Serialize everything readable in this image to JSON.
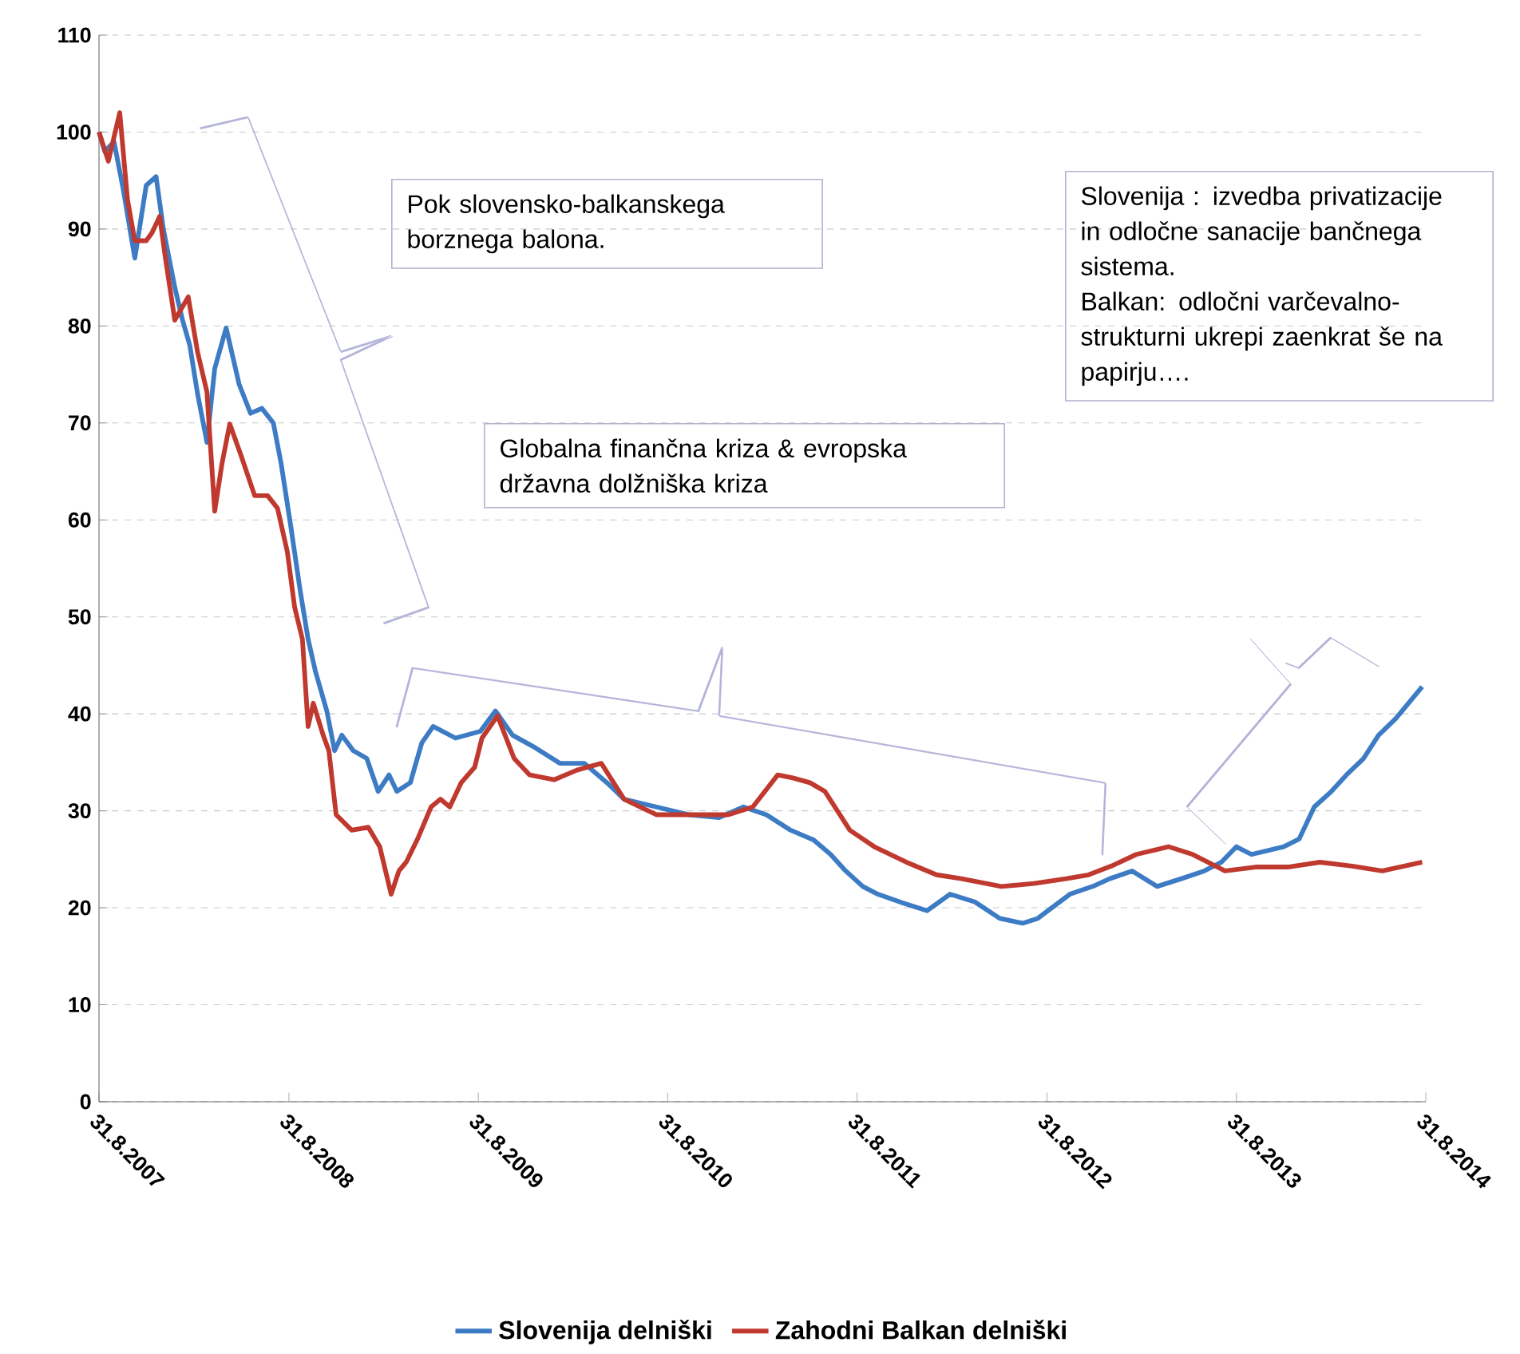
{
  "chart_data": {
    "type": "line",
    "xlim": [
      "2007-08-31",
      "2014-08-31"
    ],
    "xticks": [
      {
        "value": "2007-08-31",
        "label": "31.8.2007"
      },
      {
        "value": "2008-08-31",
        "label": "31.8.2008"
      },
      {
        "value": "2009-08-31",
        "label": "31.8.2009"
      },
      {
        "value": "2010-08-31",
        "label": "31.8.2010"
      },
      {
        "value": "2011-08-31",
        "label": "31.8.2011"
      },
      {
        "value": "2012-08-31",
        "label": "31.8.2012"
      },
      {
        "value": "2013-08-31",
        "label": "31.8.2013"
      },
      {
        "value": "2014-08-31",
        "label": "31.8.2014"
      }
    ],
    "ylim": [
      0,
      110
    ],
    "yticks": [
      0,
      10,
      20,
      30,
      40,
      50,
      60,
      70,
      80,
      90,
      100,
      110
    ],
    "grid": "y",
    "legend": "bottom",
    "annotations": [
      "Pok slovensko-balkanskega borznega balona.",
      "Globalna finančna kriza & evropska državna dolžniška kriza",
      "Slovenija : izvedba privatizacije in odločne sanacije bančnega sistema.",
      "Balkan:  odločni varčevalno-strukturni ukrepi  zaenkrat še na papirju…."
    ],
    "series": [
      {
        "name": "Slovenija delniški",
        "color": "#3d7cc4",
        "x": [
          "2007-08-31",
          "2007-09-11",
          "2007-09-29",
          "2007-10-17",
          "2007-11-08",
          "2007-11-30",
          "2007-12-19",
          "2008-01-02",
          "2008-01-24",
          "2008-02-08",
          "2008-02-22",
          "2008-03-08",
          "2008-03-26",
          "2008-04-10",
          "2008-05-02",
          "2008-05-27",
          "2008-06-18",
          "2008-07-10",
          "2008-08-01",
          "2008-08-16",
          "2008-09-04",
          "2008-09-22",
          "2008-10-07",
          "2008-10-21",
          "2008-11-12",
          "2008-11-27",
          "2008-12-11",
          "2009-01-02",
          "2009-01-28",
          "2009-02-19",
          "2009-03-12",
          "2009-03-27",
          "2009-04-22",
          "2009-05-14",
          "2009-06-05",
          "2009-07-18",
          "2009-09-04",
          "2009-10-03",
          "2009-11-05",
          "2009-12-19",
          "2010-02-04",
          "2010-03-23",
          "2010-05-06",
          "2010-06-08",
          "2010-08-09",
          "2010-10-10",
          "2010-12-08",
          "2011-01-24",
          "2011-03-09",
          "2011-04-25",
          "2011-06-08",
          "2011-07-11",
          "2011-08-09",
          "2011-09-11",
          "2011-10-10",
          "2011-11-27",
          "2012-01-13",
          "2012-02-26",
          "2012-04-14",
          "2012-06-01",
          "2012-07-15",
          "2012-08-13",
          "2012-10-14",
          "2012-11-27",
          "2012-12-30",
          "2013-02-11",
          "2013-03-31",
          "2013-05-17",
          "2013-06-30",
          "2013-08-02",
          "2013-08-31",
          "2013-09-29",
          "2013-11-30",
          "2013-12-30",
          "2014-01-28",
          "2014-03-02",
          "2014-03-31",
          "2014-05-03",
          "2014-06-01",
          "2014-07-04",
          "2014-08-24"
        ],
        "values": [
          100,
          98,
          99,
          94,
          87,
          94.5,
          95.4,
          90,
          84,
          80.6,
          78,
          73,
          68,
          75.6,
          79.8,
          74,
          71,
          71.5,
          70,
          65.8,
          59.2,
          52.6,
          47.7,
          44.4,
          40.3,
          36.2,
          37.8,
          36.2,
          35.4,
          32,
          33.7,
          32,
          32.9,
          37,
          38.7,
          37.5,
          38.2,
          40.3,
          37.8,
          36.5,
          34.9,
          34.9,
          32.9,
          31.2,
          30.4,
          29.6,
          29.3,
          30.4,
          29.6,
          28,
          27,
          25.5,
          23.8,
          22.2,
          21.4,
          20.5,
          19.7,
          21.4,
          20.6,
          18.9,
          18.4,
          18.9,
          21.4,
          22.2,
          23,
          23.8,
          22.2,
          23,
          23.8,
          24.7,
          26.3,
          25.5,
          26.3,
          27.1,
          30.4,
          32,
          33.7,
          35.4,
          37.8,
          39.5,
          42.8
        ]
      },
      {
        "name": "Zahodni Balkan delniški",
        "color": "#c0392f",
        "x": [
          "2007-08-31",
          "2007-09-18",
          "2007-10-10",
          "2007-10-25",
          "2007-11-08",
          "2007-11-30",
          "2007-12-11",
          "2007-12-26",
          "2008-01-06",
          "2008-01-24",
          "2008-02-19",
          "2008-03-08",
          "2008-03-26",
          "2008-04-10",
          "2008-04-24",
          "2008-05-09",
          "2008-05-31",
          "2008-06-26",
          "2008-07-21",
          "2008-08-09",
          "2008-08-28",
          "2008-09-11",
          "2008-09-26",
          "2008-10-07",
          "2008-10-17",
          "2008-11-05",
          "2008-11-16",
          "2008-11-30",
          "2008-12-30",
          "2009-01-31",
          "2009-02-22",
          "2009-03-16",
          "2009-03-31",
          "2009-04-14",
          "2009-05-06",
          "2009-06-01",
          "2009-06-19",
          "2009-07-07",
          "2009-07-29",
          "2009-08-24",
          "2009-09-07",
          "2009-10-07",
          "2009-11-08",
          "2009-12-08",
          "2010-01-24",
          "2010-03-09",
          "2010-04-25",
          "2010-06-08",
          "2010-08-09",
          "2010-10-10",
          "2010-11-27",
          "2010-12-26",
          "2011-02-11",
          "2011-03-31",
          "2011-04-29",
          "2011-06-01",
          "2011-06-30",
          "2011-08-17",
          "2011-10-03",
          "2011-12-04",
          "2012-01-31",
          "2012-03-19",
          "2012-06-04",
          "2012-08-06",
          "2012-10-07",
          "2012-11-19",
          "2013-01-02",
          "2013-02-19",
          "2013-04-22",
          "2013-06-08",
          "2013-08-09",
          "2013-10-07",
          "2013-12-08",
          "2014-02-08",
          "2014-04-11",
          "2014-06-08",
          "2014-08-24"
        ],
        "values": [
          100,
          97,
          102,
          93,
          88.8,
          88.8,
          89.6,
          91.3,
          87,
          80.6,
          83,
          77.3,
          73.2,
          60.9,
          65.8,
          69.9,
          66.6,
          62.5,
          62.5,
          61.2,
          56.7,
          51,
          47.7,
          38.7,
          41.1,
          37.8,
          36.2,
          29.6,
          28,
          28.3,
          26.3,
          21.4,
          23.8,
          24.7,
          27.1,
          30.4,
          31.2,
          30.4,
          32.9,
          34.5,
          37.5,
          39.8,
          35.4,
          33.7,
          33.2,
          34.2,
          34.9,
          31.2,
          29.6,
          29.6,
          29.6,
          29.6,
          30.4,
          33.7,
          33.4,
          32.9,
          32,
          28,
          26.3,
          24.7,
          23.4,
          23,
          22.2,
          22.5,
          23,
          23.4,
          24.3,
          25.5,
          26.3,
          25.5,
          23.8,
          24.2,
          24.2,
          24.7,
          24.3,
          23.8,
          24.7
        ]
      }
    ]
  }
}
